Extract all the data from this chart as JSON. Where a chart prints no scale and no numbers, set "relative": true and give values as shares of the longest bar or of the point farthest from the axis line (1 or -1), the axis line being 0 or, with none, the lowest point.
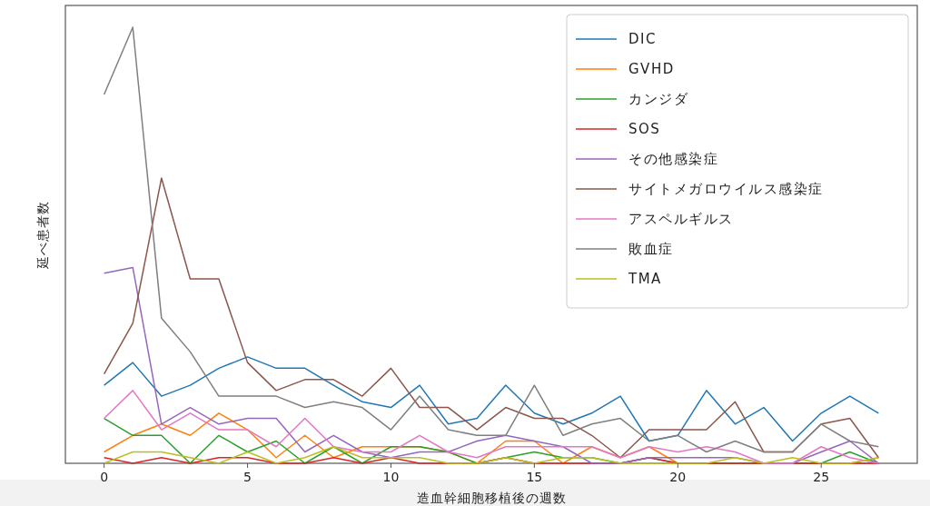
{
  "chart_data": {
    "type": "line",
    "relative": true,
    "xlabel": "造血幹細胞移植後の週数",
    "ylabel": "延べ患者数",
    "x": [
      0,
      1,
      2,
      3,
      4,
      5,
      6,
      7,
      8,
      9,
      10,
      11,
      12,
      13,
      14,
      15,
      16,
      17,
      18,
      19,
      20,
      21,
      22,
      23,
      24,
      25,
      26,
      27
    ],
    "xlim": [
      -1.35,
      28.35
    ],
    "xticks": [
      0,
      5,
      10,
      15,
      20,
      25
    ],
    "grid": false,
    "legend": "top right",
    "series": [
      {
        "name": "DIC",
        "color": "#1f77b4",
        "values": [
          0.179,
          0.231,
          0.154,
          0.179,
          0.218,
          0.244,
          0.218,
          0.218,
          0.179,
          0.141,
          0.128,
          0.179,
          0.09,
          0.103,
          0.179,
          0.115,
          0.09,
          0.115,
          0.154,
          0.051,
          0.064,
          0.167,
          0.09,
          0.128,
          0.051,
          0.115,
          0.154,
          0.115
        ]
      },
      {
        "name": "GVHD",
        "color": "#ff7f0e",
        "values": [
          0.026,
          0.064,
          0.09,
          0.064,
          0.115,
          0.077,
          0.013,
          0.064,
          0.013,
          0.038,
          0.038,
          0.038,
          0.026,
          0,
          0.051,
          0.051,
          0,
          0.038,
          0.013,
          0.038,
          0,
          0,
          0,
          0,
          0,
          0,
          0,
          0.013
        ]
      },
      {
        "name": "カンジダ",
        "color": "#2ca02c",
        "values": [
          0.103,
          0.064,
          0.064,
          0,
          0.064,
          0.026,
          0.051,
          0,
          0.038,
          0,
          0.038,
          0.038,
          0.026,
          0,
          0.013,
          0.026,
          0.013,
          0.013,
          0,
          0.013,
          0,
          0,
          0,
          0,
          0,
          0,
          0.026,
          0
        ]
      },
      {
        "name": "SOS",
        "color": "#d62728",
        "values": [
          0.013,
          0,
          0.013,
          0,
          0.013,
          0.013,
          0,
          0,
          0.013,
          0,
          0.013,
          0,
          0,
          0,
          0.013,
          0,
          0,
          0,
          0,
          0.013,
          0,
          0,
          0,
          0,
          0,
          0,
          0,
          0
        ]
      },
      {
        "name": "その他感染症",
        "color": "#9467bd",
        "values": [
          0.436,
          0.449,
          0.09,
          0.128,
          0.09,
          0.103,
          0.103,
          0.026,
          0.064,
          0.026,
          0.013,
          0.026,
          0.026,
          0.051,
          0.064,
          0.051,
          0.038,
          0,
          0,
          0.013,
          0.013,
          0.013,
          0.013,
          0,
          0,
          0.026,
          0.051,
          0
        ]
      },
      {
        "name": "サイトメガロウイルス感染症",
        "color": "#8c564b",
        "values": [
          0.205,
          0.321,
          0.654,
          0.423,
          0.423,
          0.231,
          0.167,
          0.192,
          0.192,
          0.154,
          0.218,
          0.128,
          0.128,
          0.077,
          0.128,
          0.103,
          0.103,
          0.064,
          0.013,
          0.077,
          0.077,
          0.077,
          0.141,
          0.026,
          0.026,
          0.09,
          0.103,
          0.013
        ]
      },
      {
        "name": "アスペルギルス",
        "color": "#e377c2",
        "values": [
          0.103,
          0.167,
          0.077,
          0.115,
          0.077,
          0.077,
          0.038,
          0.103,
          0.038,
          0.026,
          0.026,
          0.064,
          0.026,
          0.013,
          0.038,
          0.038,
          0.038,
          0.038,
          0.013,
          0.038,
          0.026,
          0.038,
          0.026,
          0,
          0,
          0.038,
          0.013,
          0
        ]
      },
      {
        "name": "敗血症",
        "color": "#7f7f7f",
        "values": [
          0.846,
          1,
          0.333,
          0.256,
          0.154,
          0.154,
          0.154,
          0.128,
          0.141,
          0.128,
          0.077,
          0.154,
          0.077,
          0.064,
          0.064,
          0.179,
          0.064,
          0.09,
          0.103,
          0.051,
          0.064,
          0.026,
          0.051,
          0.026,
          0.026,
          0.09,
          0.051,
          0.038
        ]
      },
      {
        "name": "TMA",
        "color": "#bcbd22",
        "values": [
          0,
          0.026,
          0.026,
          0.013,
          0,
          0.026,
          0,
          0.013,
          0.038,
          0.013,
          0.013,
          0.013,
          0,
          0,
          0.013,
          0,
          0.013,
          0.013,
          0,
          0,
          0,
          0,
          0.013,
          0,
          0.013,
          0,
          0,
          0.013
        ]
      }
    ]
  }
}
